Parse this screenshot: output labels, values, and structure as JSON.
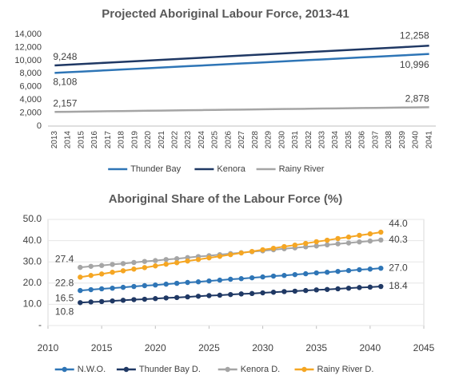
{
  "chart_data": [
    {
      "type": "line",
      "title": "Projected Aboriginal Labour Force, 2013-41",
      "categories": [
        "2013",
        "2014",
        "2015",
        "2016",
        "2017",
        "2018",
        "2019",
        "2020",
        "2021",
        "2022",
        "2023",
        "2024",
        "2025",
        "2026",
        "2027",
        "2028",
        "2029",
        "2030",
        "2031",
        "2032",
        "2033",
        "2034",
        "2035",
        "2036",
        "2037",
        "2038",
        "2039",
        "2040",
        "2041"
      ],
      "series": [
        {
          "name": "Thunder Bay",
          "color": "#2e75b6",
          "values": [
            8108,
            8211,
            8314,
            8417,
            8521,
            8624,
            8727,
            8830,
            8933,
            9036,
            9139,
            9243,
            9346,
            9449,
            9552,
            9655,
            9758,
            9861,
            9965,
            10068,
            10171,
            10274,
            10377,
            10480,
            10583,
            10687,
            10790,
            10893,
            10996
          ],
          "value_labels": [
            "8,108",
            null,
            null,
            null,
            null,
            null,
            null,
            null,
            null,
            null,
            null,
            null,
            null,
            null,
            null,
            null,
            null,
            null,
            null,
            null,
            null,
            null,
            null,
            null,
            null,
            null,
            null,
            null,
            "10,996"
          ]
        },
        {
          "name": "Kenora",
          "color": "#1f3864",
          "values": [
            9248,
            9356,
            9463,
            9571,
            9678,
            9786,
            9893,
            10001,
            10108,
            10216,
            10323,
            10431,
            10538,
            10646,
            10753,
            10861,
            10968,
            11076,
            11183,
            11291,
            11398,
            11506,
            11613,
            11721,
            11828,
            11936,
            12043,
            12151,
            12258
          ],
          "value_labels": [
            "9,248",
            null,
            null,
            null,
            null,
            null,
            null,
            null,
            null,
            null,
            null,
            null,
            null,
            null,
            null,
            null,
            null,
            null,
            null,
            null,
            null,
            null,
            null,
            null,
            null,
            null,
            null,
            null,
            "12,258"
          ]
        },
        {
          "name": "Rainy River",
          "color": "#a5a5a5",
          "values": [
            2157,
            2183,
            2209,
            2234,
            2260,
            2286,
            2312,
            2337,
            2363,
            2389,
            2415,
            2440,
            2466,
            2492,
            2518,
            2543,
            2569,
            2595,
            2621,
            2646,
            2672,
            2698,
            2724,
            2749,
            2775,
            2801,
            2827,
            2852,
            2878
          ],
          "value_labels": [
            "2,157",
            null,
            null,
            null,
            null,
            null,
            null,
            null,
            null,
            null,
            null,
            null,
            null,
            null,
            null,
            null,
            null,
            null,
            null,
            null,
            null,
            null,
            null,
            null,
            null,
            null,
            null,
            null,
            "2,878"
          ]
        }
      ],
      "ylim": [
        0,
        14000
      ],
      "yticks": [
        0,
        {
          "value": 2000,
          "label": "2,000"
        },
        {
          "value": 4000,
          "label": "4,000"
        },
        {
          "value": 6000,
          "label": "6,000"
        },
        {
          "value": 8000,
          "label": "8,000"
        },
        {
          "value": 10000,
          "label": "10,000"
        },
        {
          "value": 12000,
          "label": "12,000"
        },
        {
          "value": 14000,
          "label": "14,000"
        }
      ],
      "grid": false,
      "legend": "bottom"
    },
    {
      "type": "line",
      "title": "Aboriginal Share of the Labour Force (%)",
      "x": [
        2013,
        2014,
        2015,
        2016,
        2017,
        2018,
        2019,
        2020,
        2021,
        2022,
        2023,
        2024,
        2025,
        2026,
        2027,
        2028,
        2029,
        2030,
        2031,
        2032,
        2033,
        2034,
        2035,
        2036,
        2037,
        2038,
        2039,
        2040,
        2041
      ],
      "series": [
        {
          "name": "N.W.O.",
          "color": "#2e75b6",
          "values": [
            16.5,
            16.9,
            17.3,
            17.6,
            18.0,
            18.4,
            18.8,
            19.1,
            19.5,
            19.9,
            20.3,
            20.6,
            21.0,
            21.4,
            21.8,
            22.1,
            22.5,
            22.9,
            23.3,
            23.6,
            24.0,
            24.4,
            24.8,
            25.1,
            25.5,
            25.9,
            26.3,
            26.6,
            27.0
          ],
          "value_labels": [
            "16.5",
            null,
            null,
            null,
            null,
            null,
            null,
            null,
            null,
            null,
            null,
            null,
            null,
            null,
            null,
            null,
            null,
            null,
            null,
            null,
            null,
            null,
            null,
            null,
            null,
            null,
            null,
            null,
            "27.0"
          ]
        },
        {
          "name": "Thunder Bay D.",
          "color": "#1f3864",
          "values": [
            10.8,
            11.1,
            11.3,
            11.6,
            11.9,
            12.2,
            12.4,
            12.7,
            13.0,
            13.2,
            13.5,
            13.8,
            14.1,
            14.3,
            14.6,
            14.9,
            15.1,
            15.4,
            15.7,
            16.0,
            16.2,
            16.5,
            16.8,
            17.0,
            17.3,
            17.6,
            17.9,
            18.1,
            18.4
          ],
          "value_labels": [
            "10.8",
            null,
            null,
            null,
            null,
            null,
            null,
            null,
            null,
            null,
            null,
            null,
            null,
            null,
            null,
            null,
            null,
            null,
            null,
            null,
            null,
            null,
            null,
            null,
            null,
            null,
            null,
            null,
            "18.4"
          ]
        },
        {
          "name": "Kenora D.",
          "color": "#a5a5a5",
          "values": [
            27.4,
            27.9,
            28.3,
            28.8,
            29.2,
            29.7,
            30.2,
            30.6,
            31.1,
            31.5,
            32.0,
            32.5,
            32.9,
            33.4,
            33.9,
            34.3,
            34.8,
            35.2,
            35.7,
            36.2,
            36.6,
            37.1,
            37.5,
            38.0,
            38.5,
            38.9,
            39.4,
            39.8,
            40.3
          ],
          "value_labels": [
            "27.4",
            null,
            null,
            null,
            null,
            null,
            null,
            null,
            null,
            null,
            null,
            null,
            null,
            null,
            null,
            null,
            null,
            null,
            null,
            null,
            null,
            null,
            null,
            null,
            null,
            null,
            null,
            null,
            "40.3"
          ]
        },
        {
          "name": "Rainy River D.",
          "color": "#f5a623",
          "values": [
            22.8,
            23.6,
            24.3,
            25.1,
            25.8,
            26.6,
            27.3,
            28.1,
            28.9,
            29.6,
            30.4,
            31.1,
            31.9,
            32.6,
            33.4,
            34.2,
            34.9,
            35.7,
            36.4,
            37.2,
            37.9,
            38.7,
            39.5,
            40.2,
            41.0,
            41.7,
            42.5,
            43.2,
            44.0
          ],
          "value_labels": [
            "22.8",
            null,
            null,
            null,
            null,
            null,
            null,
            null,
            null,
            null,
            null,
            null,
            null,
            null,
            null,
            null,
            null,
            null,
            null,
            null,
            null,
            null,
            null,
            null,
            null,
            null,
            null,
            null,
            "44.0"
          ]
        }
      ],
      "xlim": [
        2010,
        2045
      ],
      "xticks": [
        2010,
        2015,
        2020,
        2025,
        2030,
        2035,
        2040,
        2045
      ],
      "ylim": [
        0,
        50
      ],
      "yticks": [
        {
          "value": 0,
          "label": "-"
        },
        {
          "value": 10,
          "label": "10.0"
        },
        {
          "value": 20,
          "label": "20.0"
        },
        {
          "value": 30,
          "label": "30.0"
        },
        {
          "value": 40,
          "label": "40.0"
        },
        {
          "value": 50,
          "label": "50.0"
        }
      ],
      "grid": true,
      "legend": "bottom"
    }
  ]
}
